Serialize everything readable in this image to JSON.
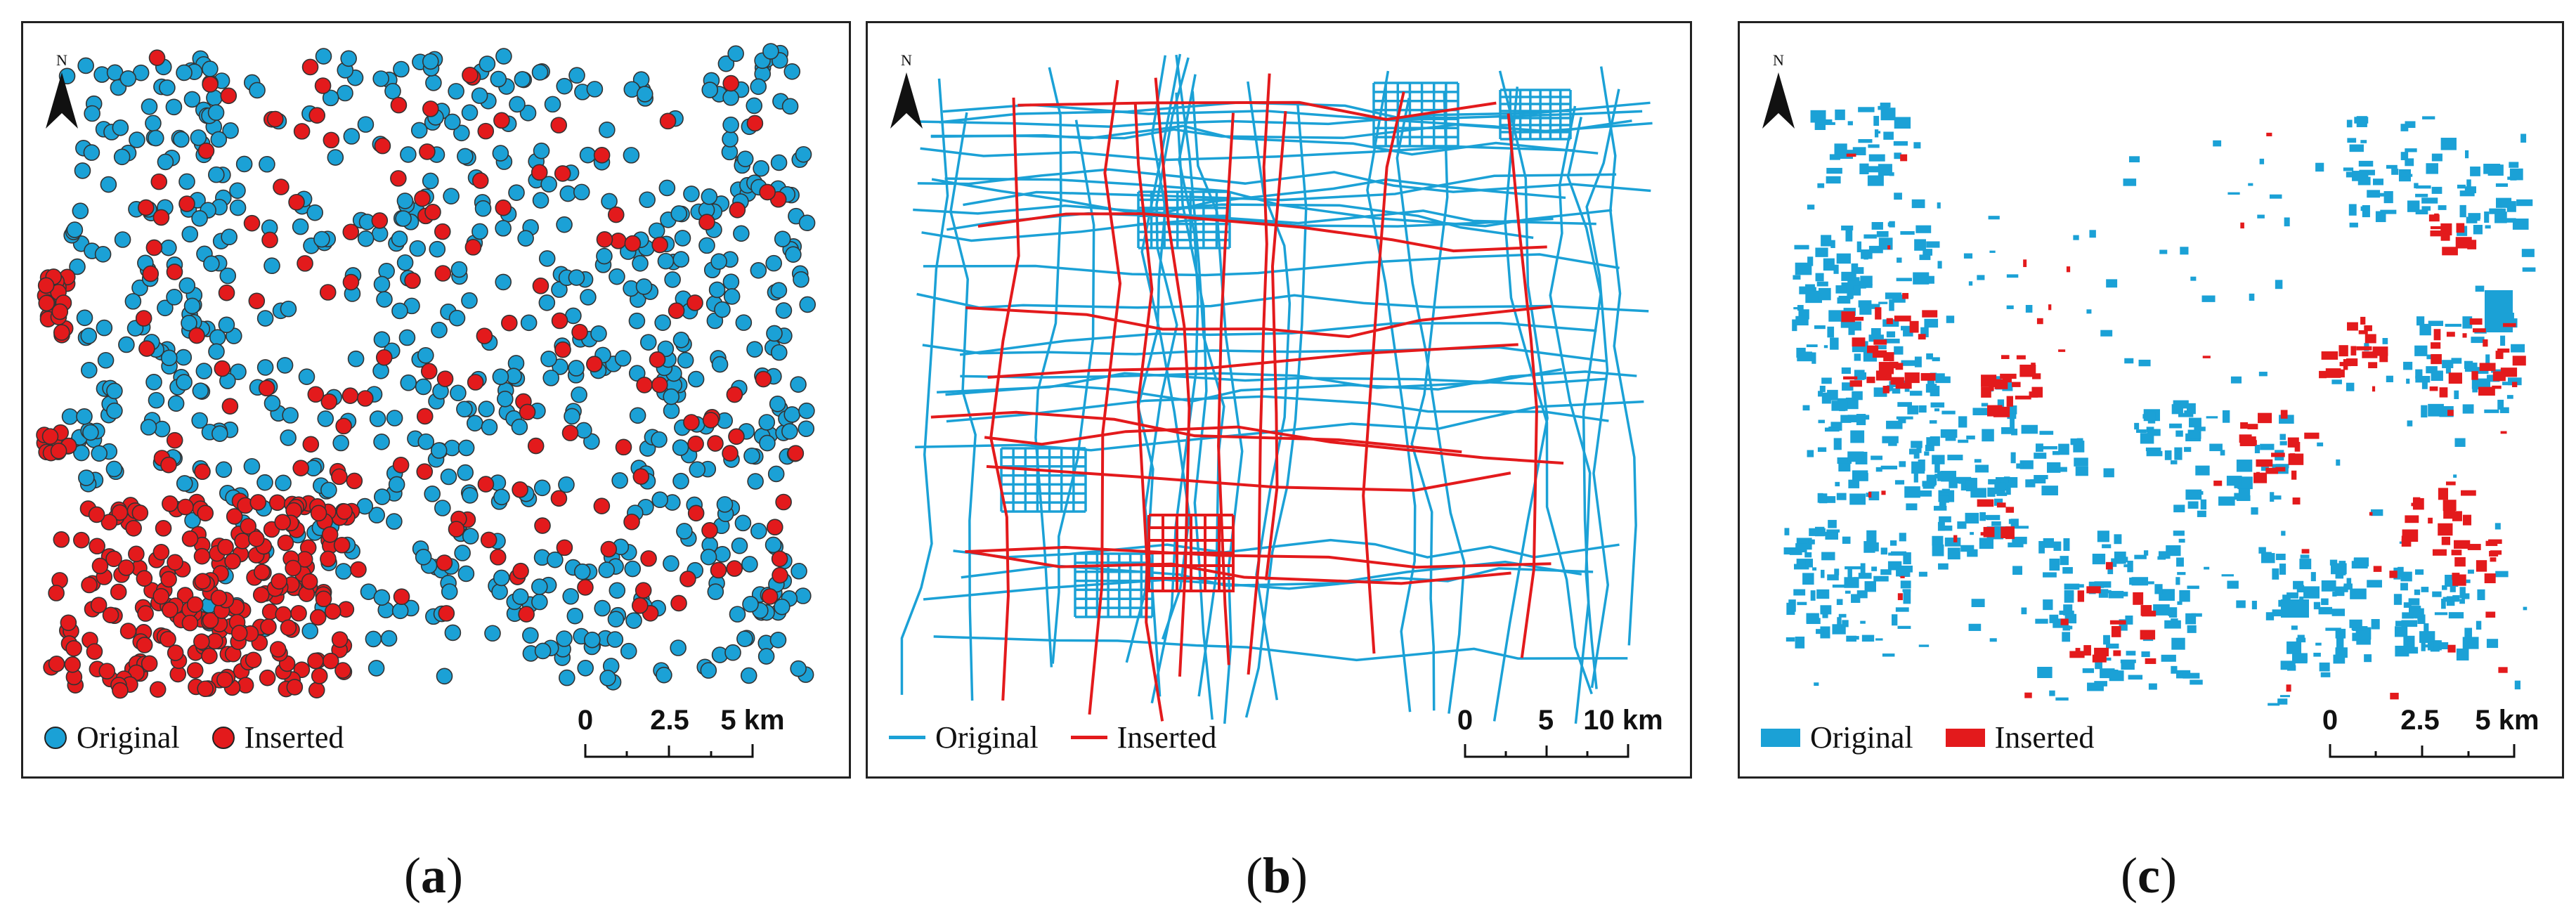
{
  "colors": {
    "original": "#1ba1d6",
    "inserted": "#e31a1c"
  },
  "north_label": "N",
  "legend": {
    "original": "Original",
    "inserted": "Inserted"
  },
  "panels": [
    {
      "id": "a",
      "type": "points",
      "scale_labels": [
        "0",
        "2.5",
        "5 km"
      ],
      "caption_letter": "a"
    },
    {
      "id": "b",
      "type": "lines",
      "scale_labels": [
        "0",
        "5",
        "10 km"
      ],
      "caption_letter": "b"
    },
    {
      "id": "c",
      "type": "polygons",
      "scale_labels": [
        "0",
        "2.5",
        "5 km"
      ],
      "caption_letter": "c"
    }
  ]
}
